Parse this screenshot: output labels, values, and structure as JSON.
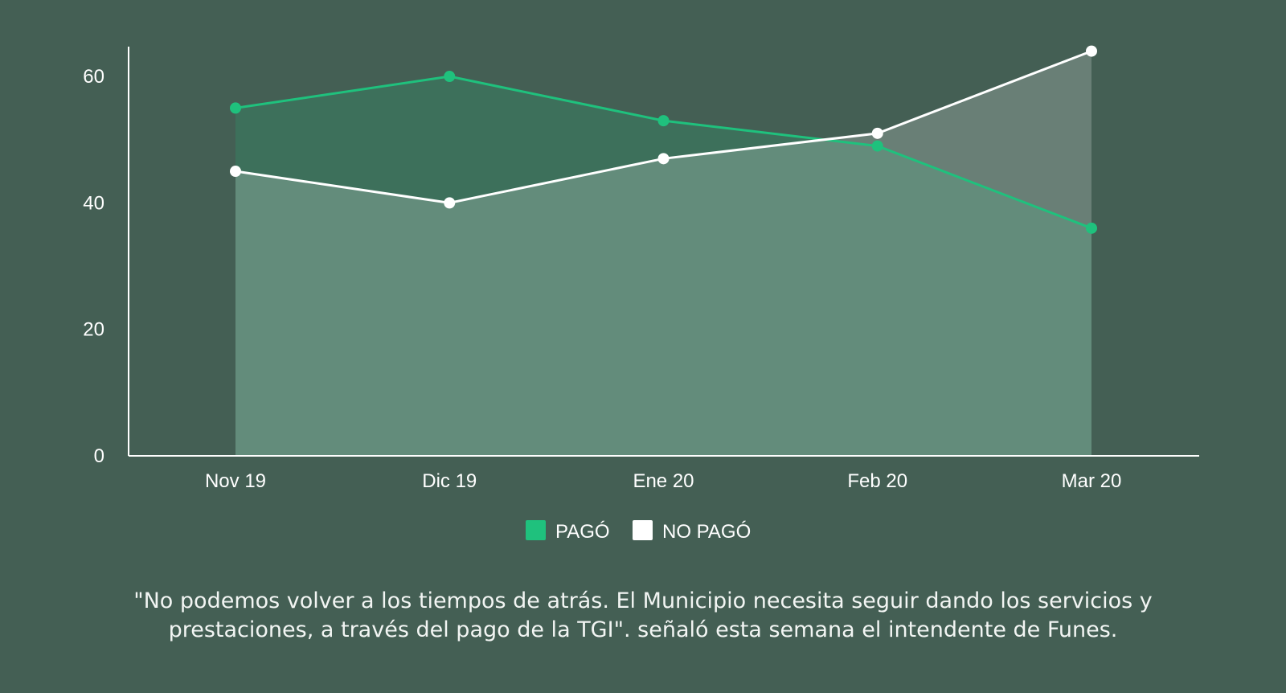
{
  "chart_data": {
    "type": "area",
    "title": "",
    "xlabel": "",
    "ylabel": "",
    "categories": [
      "Nov 19",
      "Dic 19",
      "Ene 20",
      "Feb 20",
      "Mar 20"
    ],
    "series": [
      {
        "name": "PAGÓ",
        "values": [
          55,
          60,
          53,
          49,
          36
        ],
        "color": "#1fc17d"
      },
      {
        "name": "NO PAGÓ",
        "values": [
          45,
          40,
          47,
          51,
          64
        ],
        "color": "#ffffff"
      }
    ],
    "ylim": [
      0,
      67
    ],
    "yticks": [
      0,
      20,
      40,
      60
    ],
    "grid": false,
    "legend": "bottom-center"
  },
  "caption": "\"No podemos volver a los tiempos de atrás. El Municipio necesita seguir dando los servicios y prestaciones, a través del pago de la TGI\". señaló esta semana el intendente de Funes."
}
